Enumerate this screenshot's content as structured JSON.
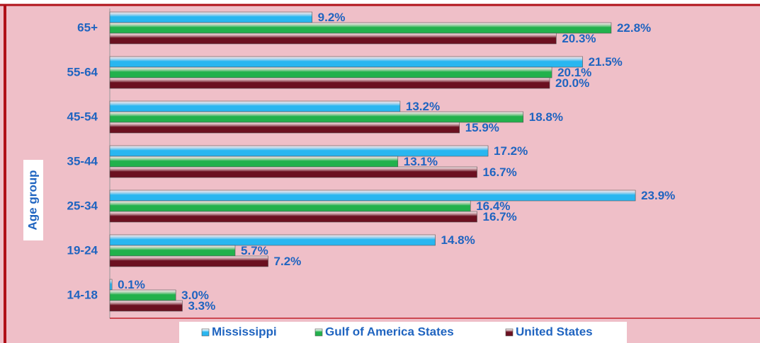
{
  "chart_data": {
    "type": "hbar",
    "ylabel": "Age group",
    "categories": [
      "65+",
      "55-64",
      "45-54",
      "35-44",
      "25-34",
      "19-24",
      "14-18"
    ],
    "series": [
      {
        "name": "Mississippi",
        "color": "#29b6f0",
        "values": [
          9.2,
          21.5,
          13.2,
          17.2,
          23.9,
          14.8,
          0.1
        ],
        "value_labels": [
          "9.2%",
          "21.5%",
          "13.2%",
          "17.2%",
          "23.9%",
          "14.8%",
          "0.1%"
        ]
      },
      {
        "name": "Gulf of America States",
        "color": "#22b14c",
        "values": [
          22.8,
          20.1,
          18.8,
          13.1,
          16.4,
          5.7,
          3.0
        ],
        "value_labels": [
          "22.8%",
          "20.1%",
          "18.8%",
          "13.1%",
          "16.4%",
          "5.7%",
          "3.0%"
        ]
      },
      {
        "name": "United States",
        "color": "#6b1020",
        "values": [
          20.3,
          20.0,
          15.9,
          16.7,
          16.7,
          7.2,
          3.3
        ],
        "value_labels": [
          "20.3%",
          "20.0%",
          "15.9%",
          "16.7%",
          "16.7%",
          "7.2%",
          "3.3%"
        ]
      }
    ]
  }
}
